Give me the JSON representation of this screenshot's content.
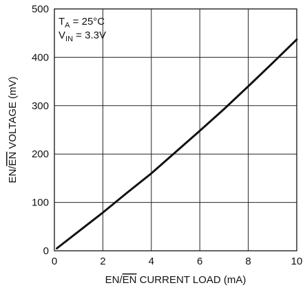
{
  "chart_data": {
    "type": "line",
    "title": "",
    "xlabel": "EN/EN CURRENT LOAD (mA)",
    "xlabel_parts": {
      "pre": "EN/",
      "over": "EN",
      "post": " CURRENT LOAD (mA)"
    },
    "ylabel": "EN/EN VOLTAGE (mV)",
    "ylabel_parts": {
      "pre": "EN/",
      "over": "EN",
      "post": " VOLTAGE (mV)"
    },
    "xlim": [
      0,
      10
    ],
    "ylim": [
      0,
      500
    ],
    "xticks": [
      0,
      2,
      4,
      6,
      8,
      10
    ],
    "yticks": [
      0,
      100,
      200,
      300,
      400,
      500
    ],
    "grid": true,
    "conditions": [
      {
        "main": "T",
        "sub": "A",
        "rest": " = 25°C"
      },
      {
        "main": "V",
        "sub": "IN",
        "rest": " = 3.3V"
      }
    ],
    "series": [
      {
        "x": [
          0.1,
          1,
          2,
          3,
          4,
          5,
          6,
          7,
          8,
          9,
          10
        ],
        "y": [
          5,
          40,
          79,
          120,
          160,
          204,
          248,
          293,
          340,
          388,
          437
        ]
      }
    ]
  }
}
